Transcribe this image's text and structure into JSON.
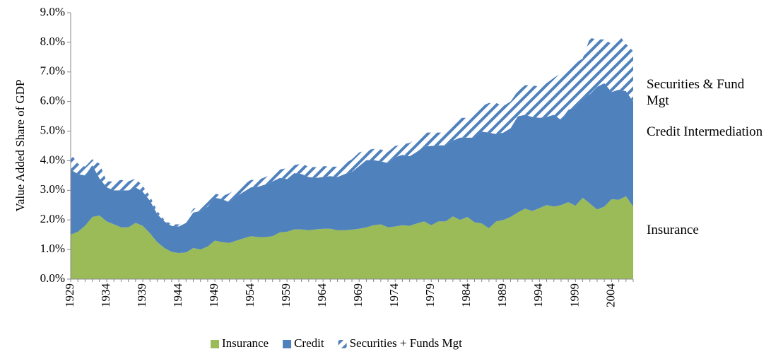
{
  "chart_data": {
    "type": "stacked_area",
    "y_label": "Value Added Share of GDP",
    "x": [
      1929,
      1930,
      1931,
      1932,
      1933,
      1934,
      1935,
      1936,
      1937,
      1938,
      1939,
      1940,
      1941,
      1942,
      1943,
      1944,
      1945,
      1946,
      1947,
      1948,
      1949,
      1950,
      1951,
      1952,
      1953,
      1954,
      1955,
      1956,
      1957,
      1958,
      1959,
      1960,
      1961,
      1962,
      1963,
      1964,
      1965,
      1966,
      1967,
      1968,
      1969,
      1970,
      1971,
      1972,
      1973,
      1974,
      1975,
      1976,
      1977,
      1978,
      1979,
      1980,
      1981,
      1982,
      1983,
      1984,
      1985,
      1986,
      1987,
      1988,
      1989,
      1990,
      1991,
      1992,
      1993,
      1994,
      1995,
      1996,
      1997,
      1998,
      1999,
      2000,
      2001,
      2002,
      2003,
      2004,
      2005,
      2006,
      2007
    ],
    "xlim": [
      1929,
      2007
    ],
    "xticks": [
      1929,
      1934,
      1939,
      1944,
      1949,
      1954,
      1959,
      1964,
      1969,
      1974,
      1979,
      1984,
      1989,
      1994,
      1999,
      2004
    ],
    "ylim": [
      0,
      9
    ],
    "yticks": [
      {
        "value": 0,
        "label": "0.0%"
      },
      {
        "value": 1,
        "label": "1.0%"
      },
      {
        "value": 2,
        "label": "2.0%"
      },
      {
        "value": 3,
        "label": "3.0%"
      },
      {
        "value": 4,
        "label": "4.0%"
      },
      {
        "value": 5,
        "label": "5.0%"
      },
      {
        "value": 6,
        "label": "6.0%"
      },
      {
        "value": 7,
        "label": "7.0%"
      },
      {
        "value": 8,
        "label": "8.0%"
      },
      {
        "value": 9,
        "label": "9.0%"
      }
    ],
    "series": [
      {
        "name": "Insurance",
        "color": "#9bbb59",
        "values": [
          1.5,
          1.6,
          1.8,
          2.1,
          2.15,
          1.95,
          1.85,
          1.75,
          1.75,
          1.9,
          1.8,
          1.55,
          1.25,
          1.05,
          0.92,
          0.88,
          0.9,
          1.05,
          1.0,
          1.1,
          1.3,
          1.25,
          1.22,
          1.3,
          1.38,
          1.45,
          1.42,
          1.42,
          1.45,
          1.58,
          1.6,
          1.68,
          1.68,
          1.65,
          1.68,
          1.7,
          1.7,
          1.65,
          1.65,
          1.67,
          1.7,
          1.75,
          1.82,
          1.85,
          1.75,
          1.78,
          1.82,
          1.8,
          1.88,
          1.95,
          1.82,
          1.95,
          1.95,
          2.12,
          2.0,
          2.1,
          1.92,
          1.88,
          1.72,
          1.95,
          2.0,
          2.1,
          2.25,
          2.38,
          2.3,
          2.4,
          2.5,
          2.45,
          2.5,
          2.6,
          2.48,
          2.75,
          2.55,
          2.35,
          2.45,
          2.7,
          2.68,
          2.8,
          2.45
        ]
      },
      {
        "name": "Credit",
        "color": "#4f81bd",
        "values": [
          2.2,
          1.95,
          1.7,
          1.75,
          1.25,
          1.15,
          1.15,
          1.25,
          1.25,
          1.2,
          1.15,
          1.1,
          0.95,
          0.9,
          0.88,
          0.9,
          1.0,
          1.2,
          1.3,
          1.35,
          1.45,
          1.45,
          1.38,
          1.5,
          1.57,
          1.65,
          1.7,
          1.78,
          1.85,
          1.84,
          1.78,
          1.9,
          1.87,
          1.8,
          1.74,
          1.75,
          1.78,
          1.8,
          1.9,
          1.95,
          2.12,
          2.27,
          2.2,
          2.13,
          2.17,
          2.34,
          2.38,
          2.35,
          2.42,
          2.53,
          2.68,
          2.57,
          2.57,
          2.56,
          2.78,
          2.68,
          2.86,
          3.1,
          3.23,
          2.95,
          2.95,
          3.0,
          3.25,
          3.17,
          3.18,
          3.05,
          2.98,
          3.1,
          2.88,
          3.12,
          3.32,
          3.37,
          3.7,
          4.15,
          4.17,
          3.62,
          3.72,
          3.55,
          3.55
        ]
      },
      {
        "name": "Securities + Funds Mgt",
        "color": "#4f81bd",
        "pattern": "diagonal",
        "values": [
          0.55,
          0.35,
          0.3,
          0.2,
          0.5,
          0.2,
          0.3,
          0.35,
          0.3,
          0.3,
          0.2,
          0.15,
          0.1,
          0.05,
          0.05,
          0.07,
          0.1,
          0.13,
          0.15,
          0.15,
          0.15,
          0.1,
          0.3,
          0.25,
          0.25,
          0.25,
          0.23,
          0.25,
          0.25,
          0.28,
          0.37,
          0.27,
          0.35,
          0.35,
          0.36,
          0.37,
          0.32,
          0.35,
          0.35,
          0.43,
          0.46,
          0.33,
          0.38,
          0.4,
          0.38,
          0.38,
          0.35,
          0.45,
          0.45,
          0.47,
          0.45,
          0.43,
          0.43,
          0.47,
          0.67,
          0.67,
          0.77,
          0.87,
          1.0,
          1.05,
          0.9,
          0.9,
          0.85,
          1.0,
          1.07,
          1.05,
          1.14,
          1.25,
          1.57,
          1.43,
          1.5,
          1.33,
          1.9,
          1.6,
          1.48,
          1.63,
          1.85,
          1.6,
          1.7
        ]
      }
    ],
    "annotations": [
      "Securities & Fund Mgt",
      "Credit Intermediation",
      "Insurance"
    ],
    "legend": "bottom"
  }
}
